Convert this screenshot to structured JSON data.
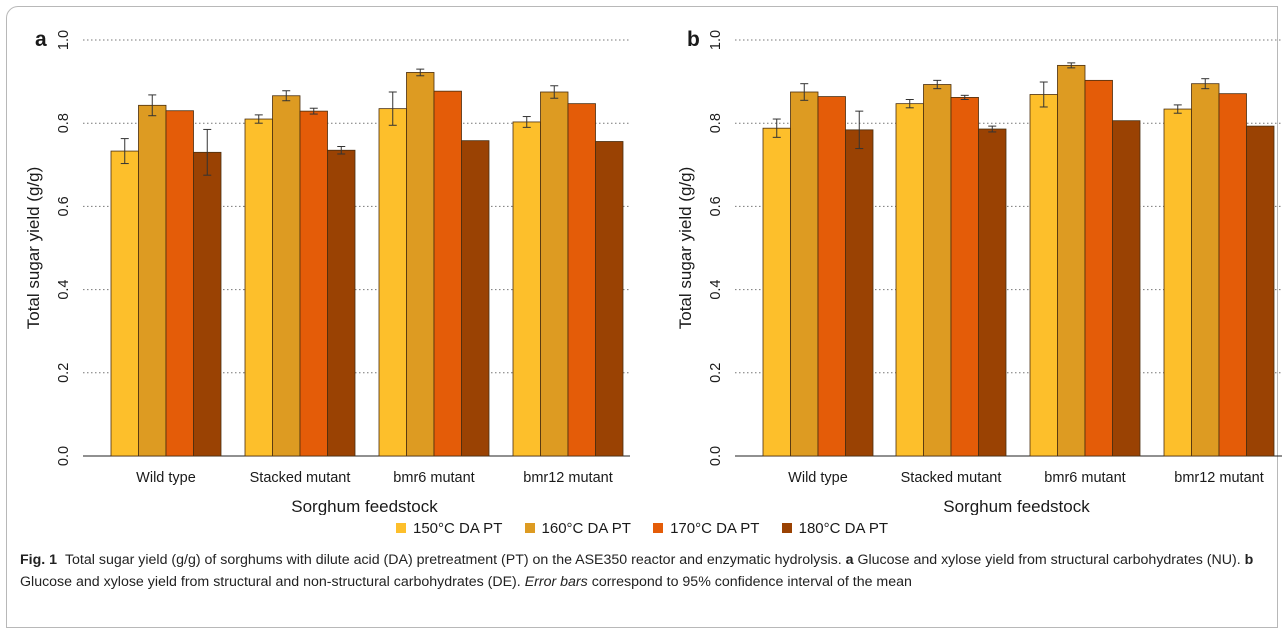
{
  "colors": {
    "series": [
      "#fdbf2b",
      "#dd9b22",
      "#e45c08",
      "#9a4203"
    ],
    "grid": "#777777",
    "bar_edge": "#4a2e10"
  },
  "legend": [
    "150°C DA PT",
    "160°C DA PT",
    "170°C DA PT",
    "180°C DA PT"
  ],
  "caption": {
    "fig_label": "Fig. 1",
    "text1": "Total sugar yield (g/g) of sorghums with dilute acid (DA) pretreatment (PT) on the ASE350 reactor and enzymatic hydrolysis.",
    "label_a": "a",
    "text2": "Glucose and xylose yield from structural carbohydrates (NU).",
    "label_b": "b",
    "text3": "Glucose and xylose yield from structural and non-structural carbohydrates (DE).",
    "italic": "Error bars",
    "text4": "correspond to 95% confidence interval of the mean"
  },
  "chart_data": [
    {
      "type": "bar",
      "panel_label": "a",
      "title": "",
      "xlabel": "Sorghum feedstock",
      "ylabel": "Total sugar yield (g/g)",
      "ylim": [
        0,
        1.0
      ],
      "yticks": [
        "0.0",
        "0.2",
        "0.4",
        "0.6",
        "0.8",
        "1.0"
      ],
      "grid": true,
      "legend_position": "bottom",
      "categories": [
        "Wild type",
        "Stacked mutant",
        "bmr6 mutant",
        "bmr12 mutant"
      ],
      "series": [
        {
          "name": "150°C DA PT",
          "values": [
            0.733,
            0.81,
            0.835,
            0.803
          ],
          "errors": [
            0.03,
            0.01,
            0.04,
            0.013
          ]
        },
        {
          "name": "160°C DA PT",
          "values": [
            0.843,
            0.866,
            0.922,
            0.875
          ],
          "errors": [
            0.025,
            0.012,
            0.008,
            0.015
          ]
        },
        {
          "name": "170°C DA PT",
          "values": [
            0.83,
            0.829,
            0.877,
            0.847
          ],
          "errors": [
            0,
            0.007,
            0,
            0
          ]
        },
        {
          "name": "180°C DA PT",
          "values": [
            0.73,
            0.735,
            0.758,
            0.756
          ],
          "errors": [
            0.055,
            0.009,
            0,
            0
          ]
        }
      ]
    },
    {
      "type": "bar",
      "panel_label": "b",
      "title": "",
      "xlabel": "Sorghum feedstock",
      "ylabel": "Total sugar yield (g/g)",
      "ylim": [
        0,
        1.0
      ],
      "yticks": [
        "0.0",
        "0.2",
        "0.4",
        "0.6",
        "0.8",
        "1.0"
      ],
      "grid": true,
      "legend_position": "bottom",
      "categories": [
        "Wild type",
        "Stacked mutant",
        "bmr6 mutant",
        "bmr12 mutant"
      ],
      "series": [
        {
          "name": "150°C DA PT",
          "values": [
            0.788,
            0.847,
            0.869,
            0.834
          ],
          "errors": [
            0.022,
            0.01,
            0.03,
            0.01
          ]
        },
        {
          "name": "160°C DA PT",
          "values": [
            0.875,
            0.893,
            0.939,
            0.895
          ],
          "errors": [
            0.02,
            0.01,
            0.006,
            0.012
          ]
        },
        {
          "name": "170°C DA PT",
          "values": [
            0.864,
            0.862,
            0.903,
            0.871
          ],
          "errors": [
            0,
            0.005,
            0,
            0
          ]
        },
        {
          "name": "180°C DA PT",
          "values": [
            0.784,
            0.786,
            0.806,
            0.793
          ],
          "errors": [
            0.045,
            0.007,
            0,
            0
          ]
        }
      ]
    }
  ]
}
